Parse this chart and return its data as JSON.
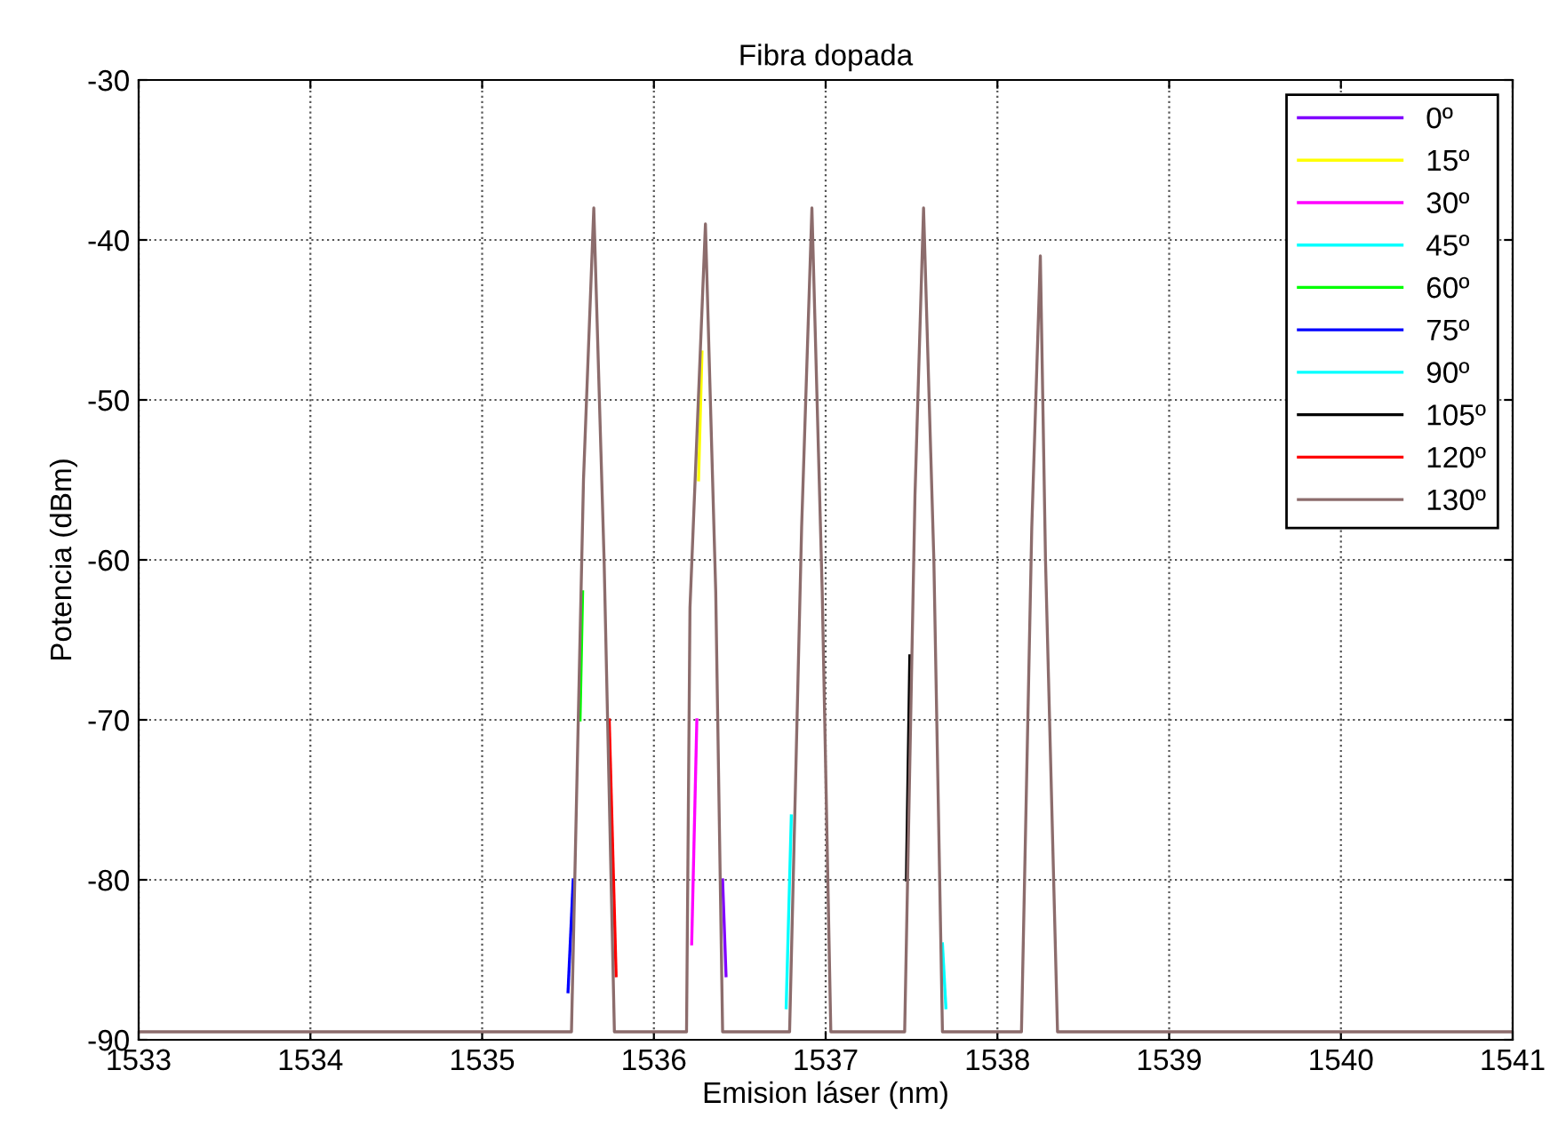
{
  "chart_data": {
    "type": "line",
    "title": "Fibra dopada",
    "xlabel": "Emision láser (nm)",
    "ylabel": "Potencia (dBm)",
    "x": [
      1533,
      1535.52,
      1535.59,
      1535.65,
      1535.71,
      1535.77,
      1536.19,
      1536.21,
      1536.3,
      1536.36,
      1536.4,
      1536.79,
      1536.86,
      1536.92,
      1536.98,
      1537.03,
      1537.46,
      1537.52,
      1537.57,
      1537.63,
      1537.68,
      1538.14,
      1538.2,
      1538.25,
      1538.28,
      1538.35,
      1541
    ],
    "series": [
      {
        "name": "0º",
        "color": "#8000ff",
        "x": [
          1536.4,
          1536.42
        ],
        "values": [
          -80,
          -86
        ]
      },
      {
        "name": "15º",
        "color": "#ffff00",
        "x": [
          1536.26,
          1536.28
        ],
        "values": [
          -55,
          -47
        ]
      },
      {
        "name": "30º",
        "color": "#ff00ff",
        "x": [
          1536.22,
          1536.25
        ],
        "values": [
          -84,
          -70
        ]
      },
      {
        "name": "45º",
        "color": "#00ffff",
        "x": [
          1536.77,
          1536.8
        ],
        "values": [
          -88,
          -76
        ]
      },
      {
        "name": "60º",
        "color": "#00ff00",
        "x": [
          1535.57,
          1535.585
        ],
        "values": [
          -70,
          -62
        ]
      },
      {
        "name": "75º",
        "color": "#0000ff",
        "x": [
          1535.5,
          1535.53
        ],
        "values": [
          -87,
          -80
        ]
      },
      {
        "name": "90º",
        "color": "#00ffff",
        "x": [
          1537.68,
          1537.7
        ],
        "values": [
          -84,
          -88
        ]
      },
      {
        "name": "105º",
        "color": "#000000",
        "x": [
          1537.47,
          1537.49
        ],
        "values": [
          -80,
          -66
        ]
      },
      {
        "name": "120º",
        "color": "#ff0000",
        "x": [
          1535.74,
          1535.78
        ],
        "values": [
          -70,
          -86
        ]
      },
      {
        "name": "130º",
        "color": "#8c6c6c",
        "values": [
          -89.5,
          -89.5,
          -55,
          -38,
          -60,
          -89.5,
          -89.5,
          -63,
          -39,
          -62,
          -89.5,
          -89.5,
          -58,
          -38,
          -62,
          -89.5,
          -89.5,
          -56,
          -38,
          -60,
          -89.5,
          -89.5,
          -58,
          -41,
          -60,
          -89.5,
          -89.5
        ]
      }
    ],
    "xlim": [
      1533,
      1541
    ],
    "xticks": [
      1533,
      1534,
      1535,
      1536,
      1537,
      1538,
      1539,
      1540,
      1541
    ],
    "ylim": [
      -90,
      -30
    ],
    "yticks": [
      -90,
      -80,
      -70,
      -60,
      -50,
      -40,
      -30
    ],
    "grid": true,
    "legend": "top right",
    "marker": "none",
    "line_style": "solid"
  }
}
